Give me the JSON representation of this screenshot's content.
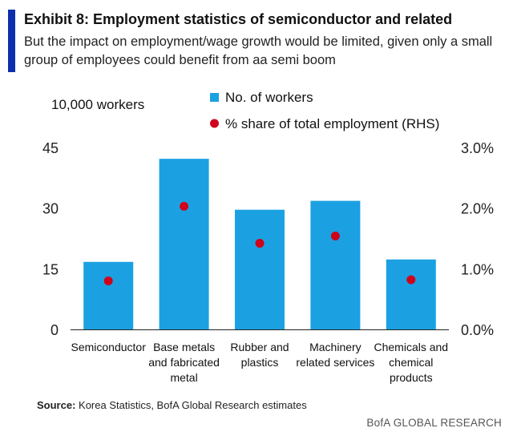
{
  "header": {
    "title": "Exhibit 8: Employment statistics of semiconductor and related",
    "subtitle": "But the impact on employment/wage growth would be limited, given only a small group of employees could benefit from aa semi boom",
    "accent_color": "#0d2fae"
  },
  "chart_data": {
    "type": "bar",
    "title": "Exhibit 8: Employment statistics of semiconductor and related",
    "ylabel_left": "10,000 workers",
    "ylabel_right": "",
    "categories": [
      [
        "Semiconductor"
      ],
      [
        "Base metals",
        "and fabricated",
        "metal"
      ],
      [
        "Rubber and",
        "plastics"
      ],
      [
        "Machinery",
        "related services"
      ],
      [
        "Chemicals and",
        "chemical",
        "products"
      ]
    ],
    "series": [
      {
        "name": "No. of workers",
        "type": "bar",
        "axis": "left",
        "color": "#1ba1e2",
        "values": [
          16.7,
          42.2,
          29.6,
          31.8,
          17.3
        ]
      },
      {
        "name": "% share of total employment (RHS)",
        "type": "scatter",
        "axis": "right",
        "color": "#d0021b",
        "values": [
          0.8,
          2.03,
          1.42,
          1.54,
          0.82
        ]
      }
    ],
    "ylim_left": [
      0,
      45
    ],
    "ylim_right": [
      0,
      3.0
    ],
    "yticks_left": [
      "0",
      "15",
      "30",
      "45"
    ],
    "yticks_left_values": [
      0,
      15,
      30,
      45
    ],
    "yticks_right": [
      "0.0%",
      "1.0%",
      "2.0%",
      "3.0%"
    ],
    "yticks_right_values": [
      0,
      1.0,
      2.0,
      3.0
    ],
    "legend": [
      "No. of workers",
      "% share of total employment (RHS)"
    ],
    "grid": false
  },
  "footer": {
    "source_label": "Source:",
    "source_text": " Korea Statistics, BofA Global Research estimates",
    "branding": "BofA GLOBAL RESEARCH"
  }
}
